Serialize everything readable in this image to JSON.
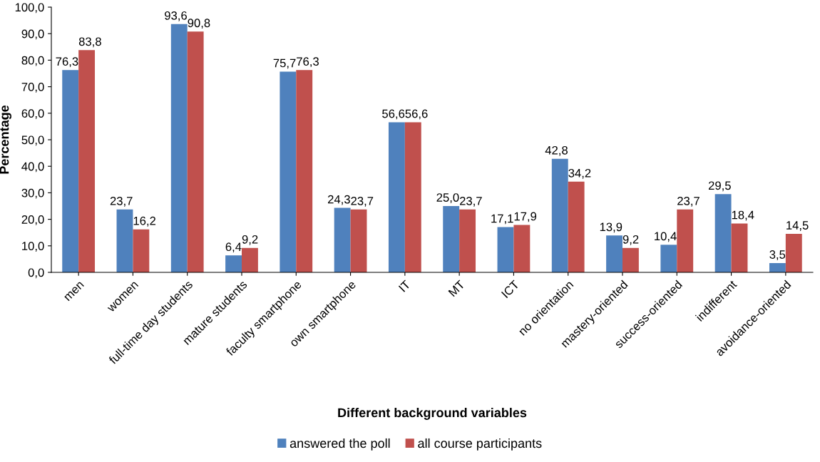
{
  "chart_data": {
    "type": "bar",
    "xlabel": "Different background variables",
    "ylabel": "Percentage",
    "categories": [
      "men",
      "women",
      "full-time day students",
      "mature students",
      "faculty smartphone",
      "own smartphone",
      "IT",
      "MT",
      "ICT",
      "no orientation",
      "mastery-oriented",
      "success-oriented",
      "indifferent",
      "avoidance-oriented"
    ],
    "series": [
      {
        "name": "answered the poll",
        "color": "#4f81bd",
        "values": [
          76.3,
          23.7,
          93.6,
          6.4,
          75.7,
          24.3,
          56.6,
          25.0,
          17.1,
          42.8,
          13.9,
          10.4,
          29.5,
          3.5
        ],
        "value_labels": [
          "76,3",
          "23,7",
          "93,6",
          "6,4",
          "75,7",
          "24,3",
          "56,6",
          "25,0",
          "17,1",
          "42,8",
          "13,9",
          "10,4",
          "29,5",
          "3,5"
        ]
      },
      {
        "name": "all course participants",
        "color": "#c0504d",
        "values": [
          83.8,
          16.2,
          90.8,
          9.2,
          76.3,
          23.7,
          56.6,
          23.7,
          17.9,
          34.2,
          9.2,
          23.7,
          18.4,
          14.5
        ],
        "value_labels": [
          "83,8",
          "16,2",
          "90,8",
          "9,2",
          "76,3",
          "23,7",
          "56,6",
          "23,7",
          "17,9",
          "34,2",
          "9,2",
          "23,7",
          "18,4",
          "14,5"
        ]
      }
    ],
    "ylim": [
      0,
      100
    ],
    "yticks": [
      {
        "value": 0,
        "label": "0,0"
      },
      {
        "value": 10,
        "label": "10,0"
      },
      {
        "value": 20,
        "label": "20,0"
      },
      {
        "value": 30,
        "label": "30,0"
      },
      {
        "value": 40,
        "label": "40,0"
      },
      {
        "value": 50,
        "label": "50,0"
      },
      {
        "value": 60,
        "label": "60,0"
      },
      {
        "value": 70,
        "label": "70,0"
      },
      {
        "value": 80,
        "label": "80,0"
      },
      {
        "value": 90,
        "label": "90,0"
      },
      {
        "value": 100,
        "label": "100,0"
      }
    ],
    "grid": false,
    "legend": "bottom"
  }
}
